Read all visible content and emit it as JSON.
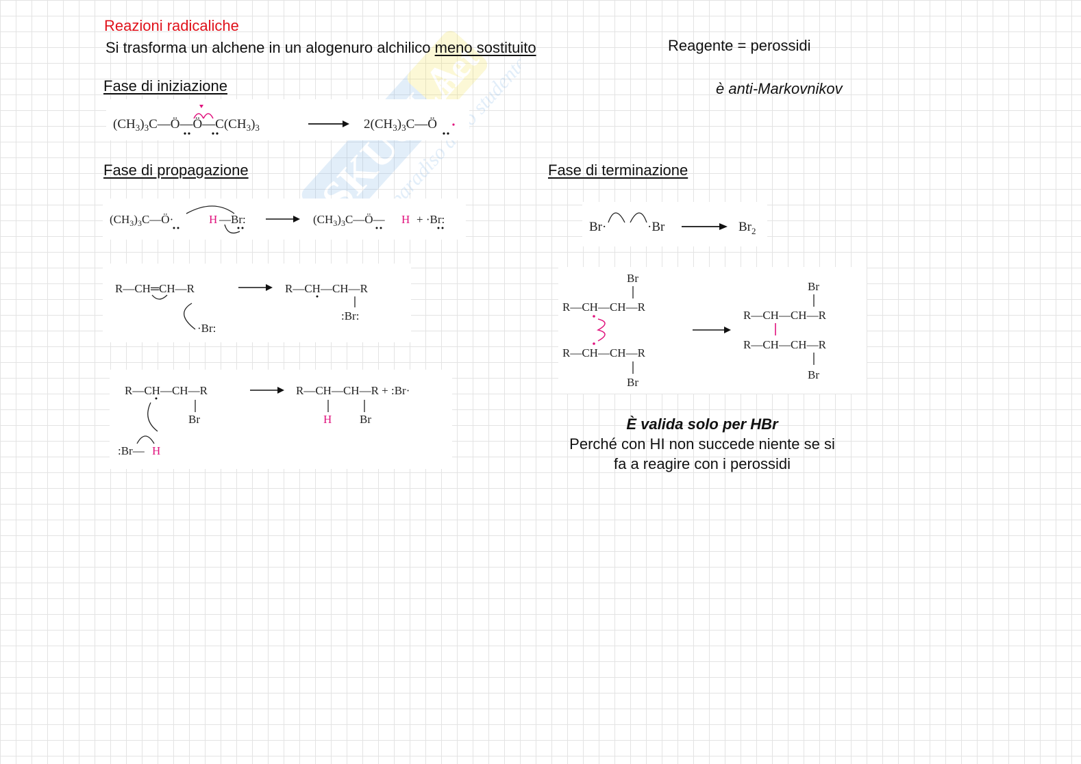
{
  "header": {
    "title": "Reazioni radicaliche",
    "intro_text": "Si trasforma un alchene in un alogenuro alchilico ",
    "intro_underlined": "meno sostituito",
    "reagent": "Reagente = perossidi",
    "anti": "è anti-Markovnikov"
  },
  "sections": {
    "initiation": "Fase di iniziazione",
    "propagation": "Fase di propagazione",
    "termination": "Fase di terminazione"
  },
  "note": {
    "title": "È valida solo per HBr",
    "line1": "Perché con HI non succede niente se si",
    "line2": "fa a reagire con i perossidi"
  },
  "colors": {
    "title_red": "#e0121b",
    "highlight_pink": "#e0127d",
    "grid": "#e3e3e3"
  },
  "watermark": {
    "brand": "Skuola.net",
    "tagline": "il paradiso dello studente"
  }
}
